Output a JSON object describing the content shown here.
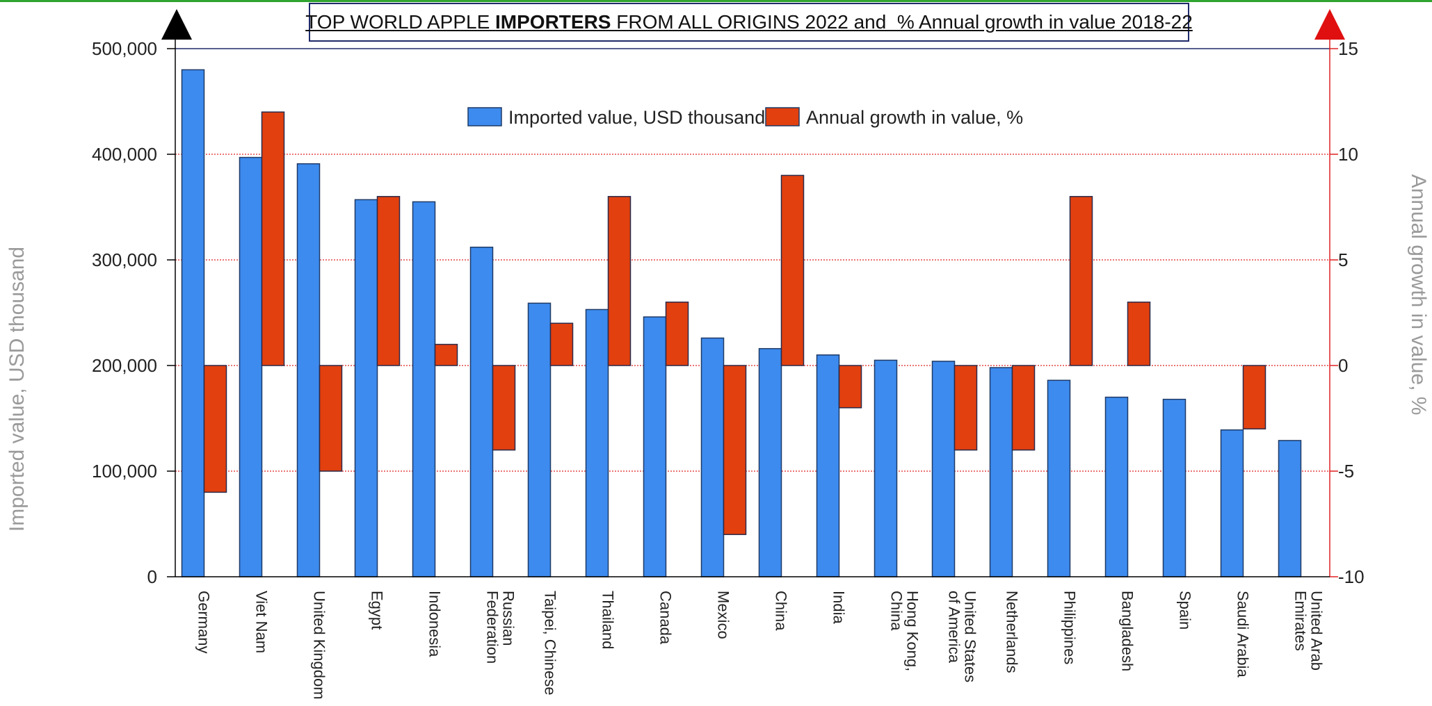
{
  "chart_data": {
    "type": "bar",
    "title": {
      "part1": "TOP WORLD APPLE ",
      "bold": "IMPORTERS",
      "part2": " FROM ALL ORIGINS 2022 and  % Annual growth in value 2018-22"
    },
    "categories": [
      [
        "Germany"
      ],
      [
        "Viet Nam"
      ],
      [
        "United Kingdom"
      ],
      [
        "Egypt"
      ],
      [
        "Indonesia"
      ],
      [
        "Russian",
        "Federation"
      ],
      [
        "Taipei, Chinese"
      ],
      [
        "Thailand"
      ],
      [
        "Canada"
      ],
      [
        "Mexico"
      ],
      [
        "China"
      ],
      [
        "India"
      ],
      [
        "Hong Kong,",
        "China"
      ],
      [
        "United States",
        "of America"
      ],
      [
        "Netherlands"
      ],
      [
        "Philippines"
      ],
      [
        "Bangladesh"
      ],
      [
        "Spain"
      ],
      [
        "Saudi Arabia"
      ],
      [
        "United Arab",
        "Emirates"
      ]
    ],
    "series": [
      {
        "name": "Imported value, USD thousand",
        "axis": "left",
        "color": "#3d8bef",
        "values": [
          480000,
          397000,
          391000,
          357000,
          355000,
          312000,
          259000,
          253000,
          246000,
          226000,
          216000,
          210000,
          205000,
          204000,
          198000,
          186000,
          170000,
          168000,
          139000,
          129000
        ]
      },
      {
        "name": "Annual growth in value, %",
        "axis": "right",
        "color": "#e2400f",
        "values": [
          -6,
          12,
          -5,
          8,
          1,
          -4,
          2,
          8,
          3,
          -8,
          9,
          -2,
          null,
          -4,
          -4,
          8,
          3,
          null,
          -3,
          null
        ]
      }
    ],
    "ylabel": "Imported value, USD thousand",
    "y2label": "Annual growth in value, %",
    "ylim": [
      0,
      500000
    ],
    "y2lim": [
      -10,
      15
    ],
    "yticks": [
      0,
      100000,
      200000,
      300000,
      400000,
      500000
    ],
    "yticklabels": [
      "0",
      "100,000",
      "200,000",
      "300,000",
      "400,000",
      "500,000"
    ],
    "y2ticks": [
      -10,
      -5,
      0,
      5,
      10,
      15
    ],
    "y2ticklabels": [
      "-10",
      "-5",
      "0",
      "5",
      "10",
      "15"
    ],
    "gridlines": true,
    "legend_position": "top-center"
  }
}
